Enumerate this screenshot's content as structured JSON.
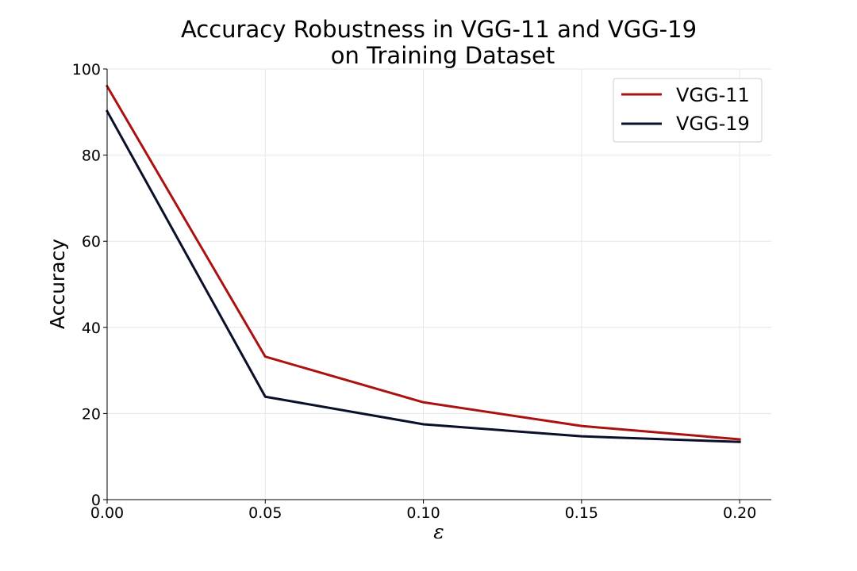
{
  "chart_data": {
    "type": "line",
    "title": [
      "Accuracy Robustness in VGG-11 and VGG-19",
      "on Training Dataset"
    ],
    "xlabel": "ε",
    "ylabel": "Accuracy",
    "x": [
      0.0,
      0.05,
      0.1,
      0.15,
      0.2
    ],
    "xlim": [
      0.0,
      0.21
    ],
    "ylim": [
      0,
      100
    ],
    "xticks": [
      "0.00",
      "0.05",
      "0.10",
      "0.15",
      "0.20"
    ],
    "xtick_values": [
      0.0,
      0.05,
      0.1,
      0.15,
      0.2
    ],
    "yticks": [
      "0",
      "20",
      "40",
      "60",
      "80",
      "100"
    ],
    "ytick_values": [
      0,
      20,
      40,
      60,
      80,
      100
    ],
    "grid": true,
    "legend_position": "top-right",
    "series": [
      {
        "name": "VGG-11",
        "color": "#aa1111",
        "values": [
          96.0,
          33.2,
          22.6,
          17.1,
          14.0
        ]
      },
      {
        "name": "VGG-19",
        "color": "#0a0f2a",
        "values": [
          90.2,
          23.9,
          17.5,
          14.7,
          13.4
        ]
      }
    ]
  }
}
